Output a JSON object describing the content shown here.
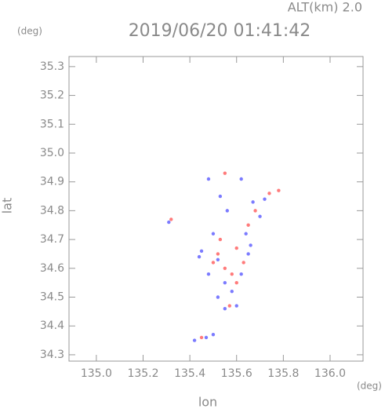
{
  "chart_data": {
    "type": "scatter",
    "title": "2019/06/20 01:41:42",
    "subtitle": "ALT(km) 2.0",
    "x_label": "lon",
    "y_label": "lat",
    "x_unit": "(deg)",
    "y_unit": "(deg)",
    "xlim": [
      134.883,
      136.141
    ],
    "ylim": [
      34.278,
      35.335
    ],
    "xticks": [
      {
        "value": 135,
        "label": "135.0"
      },
      135.2,
      135.4,
      135.6,
      135.8,
      {
        "value": 136,
        "label": "136.0"
      }
    ],
    "yticks": [
      34.3,
      34.4,
      34.5,
      34.6,
      34.7,
      34.8,
      34.9,
      {
        "value": 35,
        "label": "35.0"
      },
      35.1,
      35.2,
      35.3
    ],
    "series": [
      {
        "color": "#ff5a5a",
        "x": [
          135.55,
          135.68,
          135.74,
          135.53,
          135.6,
          135.5,
          135.55,
          135.58,
          135.63,
          135.6,
          135.57,
          135.52,
          135.45,
          135.32,
          135.78,
          135.65
        ],
        "y": [
          34.93,
          34.8,
          34.86,
          34.7,
          34.67,
          34.62,
          34.6,
          34.58,
          34.62,
          34.55,
          34.47,
          34.65,
          34.36,
          34.77,
          34.87,
          34.75
        ]
      },
      {
        "color": "#5a5aff",
        "x": [
          135.48,
          135.62,
          135.53,
          135.56,
          135.67,
          135.72,
          135.7,
          135.64,
          135.5,
          135.45,
          135.52,
          135.48,
          135.55,
          135.62,
          135.65,
          135.52,
          135.58,
          135.6,
          135.55,
          135.42,
          135.47,
          135.5,
          135.31,
          135.44,
          135.66
        ],
        "y": [
          34.91,
          34.91,
          34.85,
          34.8,
          34.83,
          34.84,
          34.78,
          34.72,
          34.72,
          34.66,
          34.63,
          34.58,
          34.55,
          34.58,
          34.65,
          34.5,
          34.52,
          34.47,
          34.46,
          34.35,
          34.36,
          34.37,
          34.76,
          34.64,
          34.68
        ]
      }
    ]
  }
}
